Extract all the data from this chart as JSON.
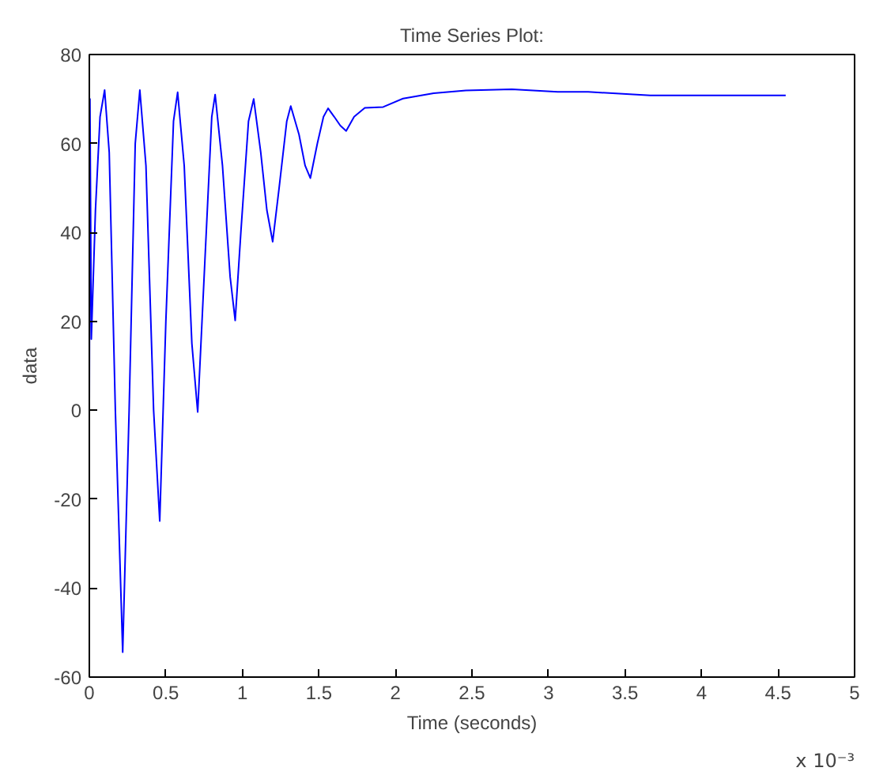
{
  "chart_data": {
    "type": "line",
    "title": "Time Series Plot:",
    "xlabel": "Time (seconds)",
    "ylabel": "data",
    "annotations": [
      "x 10⁻³"
    ],
    "x": [
      0,
      0.004,
      0.013,
      0.04,
      0.07,
      0.1,
      0.13,
      0.17,
      0.218,
      0.26,
      0.3,
      0.33,
      0.37,
      0.42,
      0.46,
      0.5,
      0.55,
      0.577,
      0.62,
      0.67,
      0.708,
      0.75,
      0.8,
      0.822,
      0.87,
      0.92,
      0.953,
      0.99,
      1.04,
      1.074,
      1.12,
      1.16,
      1.198,
      1.24,
      1.29,
      1.316,
      1.37,
      1.41,
      1.444,
      1.49,
      1.53,
      1.56,
      1.6,
      1.64,
      1.678,
      1.73,
      1.8,
      1.92,
      2.05,
      2.25,
      2.46,
      2.76,
      3.06,
      3.26,
      3.665,
      4.1,
      4.55
    ],
    "series": [
      {
        "color": "#0000ff",
        "values": [
          0,
          70,
          16,
          45,
          66,
          72,
          58,
          0,
          -54.4,
          0,
          60,
          72,
          55,
          0,
          -24.9,
          20,
          65,
          71.5,
          55,
          15,
          -0.4,
          30,
          66,
          71,
          55,
          30,
          20.2,
          40,
          65,
          70,
          58,
          45,
          37.9,
          50,
          65,
          68.4,
          62,
          55,
          52.2,
          60,
          66,
          67.9,
          66,
          64,
          62.8,
          66,
          68,
          68.2,
          70.1,
          71.3,
          71.9,
          72.2,
          71.6,
          71.6,
          70.8,
          70.8,
          70.8
        ]
      }
    ],
    "xlim": [
      0,
      5
    ],
    "ylim": [
      -60,
      80
    ],
    "xticks": [
      0,
      0.5,
      1,
      1.5,
      2,
      2.5,
      3,
      3.5,
      4,
      4.5,
      5
    ],
    "yticks": [
      -60,
      -40,
      -20,
      0,
      20,
      40,
      60,
      80
    ],
    "grid": false,
    "marker": "none",
    "line_style": "solid"
  }
}
